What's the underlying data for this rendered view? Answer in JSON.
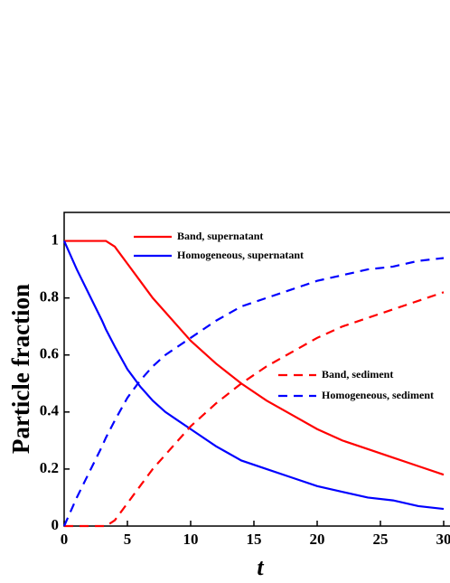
{
  "chart_data": {
    "type": "line",
    "x_label": "t",
    "y_label": "Particle fraction",
    "x": [
      0,
      1,
      2,
      3,
      3.3,
      4,
      5,
      6,
      7,
      8,
      9,
      10,
      12,
      14,
      16,
      18,
      20,
      22,
      24,
      26,
      28,
      30
    ],
    "series": [
      {
        "name": "Band, supernatant",
        "color": "#ff0000",
        "dashed": false,
        "values": [
          1,
          1,
          1,
          1,
          1,
          0.98,
          0.92,
          0.86,
          0.8,
          0.75,
          0.7,
          0.65,
          0.57,
          0.5,
          0.44,
          0.39,
          0.34,
          0.3,
          0.27,
          0.24,
          0.21,
          0.18
        ]
      },
      {
        "name": "Homogeneous, supernatant",
        "color": "#0000ff",
        "dashed": false,
        "values": [
          1,
          0.9,
          0.81,
          0.72,
          0.69,
          0.63,
          0.55,
          0.49,
          0.44,
          0.4,
          0.37,
          0.34,
          0.28,
          0.23,
          0.2,
          0.17,
          0.14,
          0.12,
          0.1,
          0.09,
          0.07,
          0.06
        ]
      },
      {
        "name": "Band, sediment",
        "color": "#ff0000",
        "dashed": true,
        "values": [
          0,
          0,
          0,
          0,
          0,
          0.02,
          0.08,
          0.14,
          0.2,
          0.25,
          0.3,
          0.35,
          0.43,
          0.5,
          0.56,
          0.61,
          0.66,
          0.7,
          0.73,
          0.76,
          0.79,
          0.82
        ]
      },
      {
        "name": "Homogeneous, sediment",
        "color": "#0000ff",
        "dashed": true,
        "values": [
          0,
          0.1,
          0.19,
          0.28,
          0.31,
          0.37,
          0.45,
          0.51,
          0.56,
          0.6,
          0.63,
          0.66,
          0.72,
          0.77,
          0.8,
          0.83,
          0.86,
          0.88,
          0.9,
          0.91,
          0.93,
          0.94
        ]
      }
    ],
    "xlim": [
      0,
      30.5
    ],
    "ylim": [
      0,
      1.1
    ],
    "xticks": [
      0,
      5,
      10,
      15,
      20,
      25,
      30
    ],
    "yticks": [
      0,
      0.2,
      0.4,
      0.6,
      0.8,
      1
    ]
  }
}
